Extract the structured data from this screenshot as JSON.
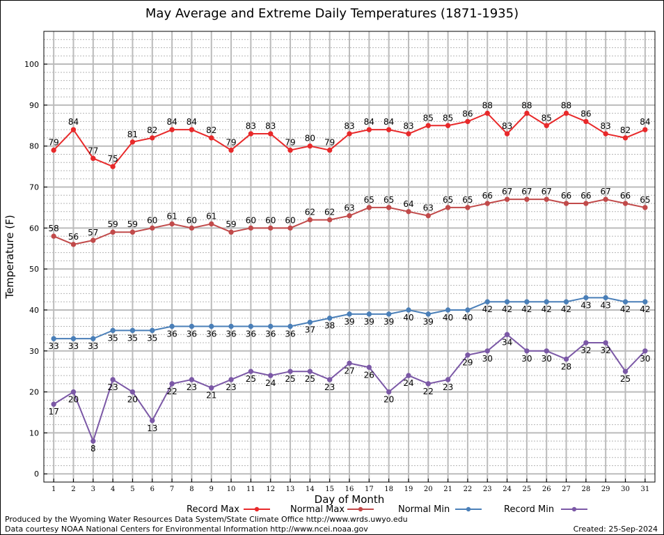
{
  "chart_data": {
    "type": "line",
    "title": "May Average and Extreme Daily Temperatures (1871-1935)",
    "xlabel": "Day of Month",
    "ylabel": "Temperature (F)",
    "ylim": [
      -2,
      108
    ],
    "yticks": [
      0,
      10,
      20,
      30,
      40,
      50,
      60,
      70,
      80,
      90,
      100
    ],
    "x": [
      1,
      2,
      3,
      4,
      5,
      6,
      7,
      8,
      9,
      10,
      11,
      12,
      13,
      14,
      15,
      16,
      17,
      18,
      19,
      20,
      21,
      22,
      23,
      24,
      25,
      26,
      27,
      28,
      29,
      30,
      31
    ],
    "grid": true,
    "legend_position": "bottom",
    "series": [
      {
        "name": "Record Max",
        "color": "#e8292a",
        "label_pos": "above",
        "values": [
          79,
          84,
          77,
          75,
          81,
          82,
          84,
          84,
          82,
          79,
          83,
          83,
          79,
          80,
          79,
          83,
          84,
          84,
          83,
          85,
          85,
          86,
          88,
          83,
          88,
          85,
          88,
          86,
          83,
          82,
          84
        ]
      },
      {
        "name": "Normal Max",
        "color": "#c14a4a",
        "label_pos": "above",
        "values": [
          58,
          56,
          57,
          59,
          59,
          60,
          61,
          60,
          61,
          59,
          60,
          60,
          60,
          62,
          62,
          63,
          65,
          65,
          64,
          63,
          65,
          65,
          66,
          67,
          67,
          67,
          66,
          66,
          67,
          66,
          65
        ]
      },
      {
        "name": "Normal Min",
        "color": "#4a7fb8",
        "label_pos": "below",
        "values": [
          33,
          33,
          33,
          35,
          35,
          35,
          36,
          36,
          36,
          36,
          36,
          36,
          36,
          37,
          38,
          39,
          39,
          39,
          40,
          39,
          40,
          40,
          42,
          42,
          42,
          42,
          42,
          43,
          43,
          42,
          42
        ]
      },
      {
        "name": "Record Min",
        "color": "#7b58a6",
        "label_pos": "below",
        "values": [
          17,
          20,
          8,
          23,
          20,
          13,
          22,
          23,
          21,
          23,
          25,
          24,
          25,
          25,
          23,
          27,
          26,
          20,
          24,
          22,
          23,
          29,
          30,
          34,
          30,
          30,
          28,
          32,
          32,
          25,
          30
        ]
      }
    ]
  },
  "footer": {
    "produced_by": "Produced by the Wyoming Water Resources Data System/State Climate Office http://www.wrds.uwyo.edu",
    "courtesy": "Data courtesy NOAA National Centers for Environmental Information http://www.ncei.noaa.gov",
    "created": "Created:  25-Sep-2024"
  }
}
